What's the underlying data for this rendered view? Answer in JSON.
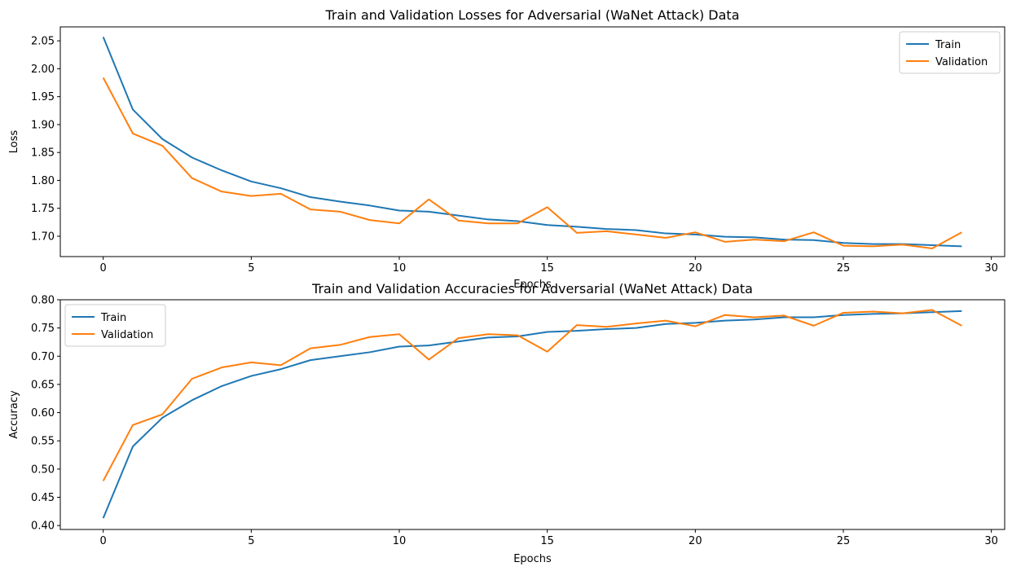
{
  "chart_data": [
    {
      "type": "line",
      "title": "Train and Validation Losses for Adversarial (WaNet Attack) Data",
      "xlabel": "Epochs",
      "ylabel": "Loss",
      "xlim": [
        -1.45,
        30.45
      ],
      "ylim": [
        1.6635,
        2.075
      ],
      "xticks": [
        0,
        5,
        10,
        15,
        20,
        25,
        30
      ],
      "yticks": [
        1.7,
        1.75,
        1.8,
        1.85,
        1.9,
        1.95,
        2.0,
        2.05
      ],
      "ytick_labels": [
        "1.70",
        "1.75",
        "1.80",
        "1.85",
        "1.90",
        "1.95",
        "2.00",
        "2.05"
      ],
      "grid": false,
      "legend_position": "top-right",
      "x": [
        0,
        1,
        2,
        3,
        4,
        5,
        6,
        7,
        8,
        9,
        10,
        11,
        12,
        13,
        14,
        15,
        16,
        17,
        18,
        19,
        20,
        21,
        22,
        23,
        24,
        25,
        26,
        27,
        28,
        29
      ],
      "series": [
        {
          "name": "Train",
          "color": "#1f77b4",
          "values": [
            2.057,
            1.927,
            1.874,
            1.841,
            1.818,
            1.798,
            1.786,
            1.77,
            1.762,
            1.755,
            1.746,
            1.744,
            1.737,
            1.73,
            1.727,
            1.72,
            1.717,
            1.713,
            1.711,
            1.705,
            1.703,
            1.699,
            1.698,
            1.694,
            1.693,
            1.688,
            1.686,
            1.686,
            1.684,
            1.682
          ]
        },
        {
          "name": "Validation",
          "color": "#ff7f0e",
          "values": [
            1.984,
            1.884,
            1.862,
            1.804,
            1.78,
            1.772,
            1.776,
            1.748,
            1.744,
            1.729,
            1.723,
            1.766,
            1.728,
            1.723,
            1.723,
            1.752,
            1.706,
            1.709,
            1.703,
            1.697,
            1.707,
            1.69,
            1.694,
            1.691,
            1.707,
            1.683,
            1.682,
            1.685,
            1.678,
            1.707
          ]
        }
      ]
    },
    {
      "type": "line",
      "title": "Train and Validation Accuracies for Adversarial (WaNet Attack) Data",
      "xlabel": "Epochs",
      "ylabel": "Accuracy",
      "xlim": [
        -1.45,
        30.45
      ],
      "ylim": [
        0.393,
        0.8
      ],
      "xticks": [
        0,
        5,
        10,
        15,
        20,
        25,
        30
      ],
      "yticks": [
        0.4,
        0.45,
        0.5,
        0.55,
        0.6,
        0.65,
        0.7,
        0.75,
        0.8
      ],
      "ytick_labels": [
        "0.40",
        "0.45",
        "0.50",
        "0.55",
        "0.60",
        "0.65",
        "0.70",
        "0.75",
        "0.80"
      ],
      "grid": false,
      "legend_position": "top-left",
      "x": [
        0,
        1,
        2,
        3,
        4,
        5,
        6,
        7,
        8,
        9,
        10,
        11,
        12,
        13,
        14,
        15,
        16,
        17,
        18,
        19,
        20,
        21,
        22,
        23,
        24,
        25,
        26,
        27,
        28,
        29
      ],
      "series": [
        {
          "name": "Train",
          "color": "#1f77b4",
          "values": [
            0.413,
            0.54,
            0.591,
            0.622,
            0.647,
            0.665,
            0.677,
            0.693,
            0.7,
            0.707,
            0.717,
            0.719,
            0.726,
            0.733,
            0.735,
            0.743,
            0.745,
            0.748,
            0.75,
            0.757,
            0.759,
            0.763,
            0.765,
            0.769,
            0.769,
            0.773,
            0.775,
            0.776,
            0.778,
            0.78
          ]
        },
        {
          "name": "Validation",
          "color": "#ff7f0e",
          "values": [
            0.479,
            0.578,
            0.597,
            0.66,
            0.68,
            0.689,
            0.684,
            0.714,
            0.72,
            0.734,
            0.739,
            0.694,
            0.732,
            0.739,
            0.737,
            0.708,
            0.755,
            0.752,
            0.758,
            0.763,
            0.753,
            0.773,
            0.769,
            0.772,
            0.754,
            0.777,
            0.779,
            0.776,
            0.782,
            0.754
          ]
        }
      ]
    }
  ]
}
